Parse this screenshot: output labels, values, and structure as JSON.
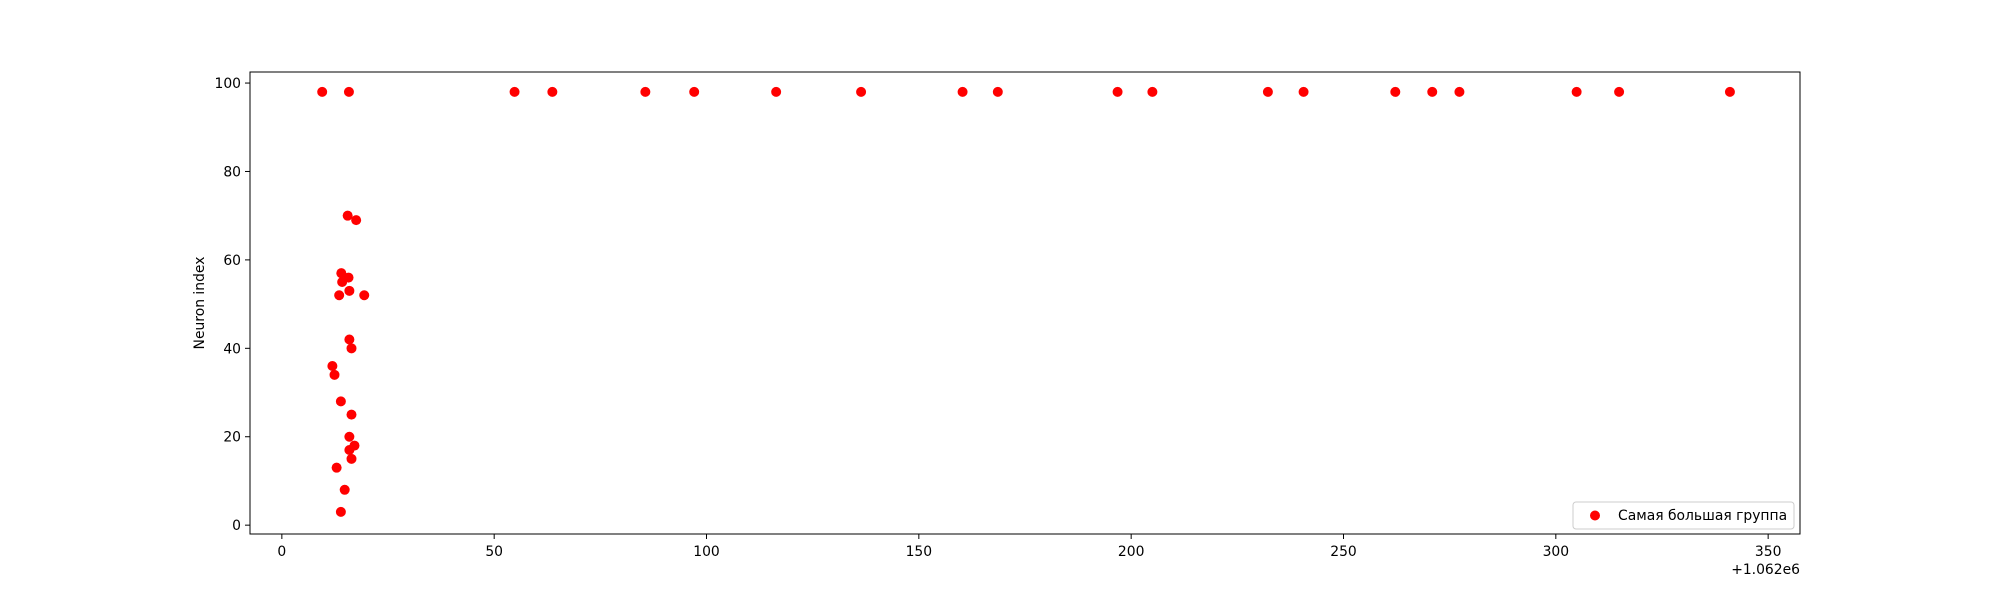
{
  "chart_data": {
    "type": "scatter",
    "title": "",
    "xlabel": "",
    "ylabel": "Neuron index",
    "x_offset_label": "+1.062e6",
    "x_offset": 1062000,
    "xlim": [
      -7.5,
      357.5
    ],
    "ylim": [
      -2,
      102.5
    ],
    "xticks": [
      0,
      50,
      100,
      150,
      200,
      250,
      300,
      350
    ],
    "xtick_labels": [
      "0",
      "50",
      "100",
      "150",
      "200",
      "250",
      "300",
      "350"
    ],
    "yticks": [
      0,
      20,
      40,
      60,
      80,
      100
    ],
    "ytick_labels": [
      "0",
      "20",
      "40",
      "60",
      "80",
      "100"
    ],
    "grid": false,
    "legend_position": "lower-right",
    "marker_color": "#ff0000",
    "series": [
      {
        "name": "Самая большая группа",
        "color": "#ff0000",
        "points": [
          [
            9.5,
            98
          ],
          [
            15.8,
            98
          ],
          [
            54.8,
            98
          ],
          [
            63.7,
            98
          ],
          [
            85.6,
            98
          ],
          [
            97.1,
            98
          ],
          [
            116.4,
            98
          ],
          [
            136.4,
            98
          ],
          [
            160.3,
            98
          ],
          [
            168.6,
            98
          ],
          [
            196.8,
            98
          ],
          [
            205.0,
            98
          ],
          [
            232.2,
            98
          ],
          [
            240.6,
            98
          ],
          [
            262.2,
            98
          ],
          [
            270.9,
            98
          ],
          [
            277.3,
            98
          ],
          [
            304.9,
            98
          ],
          [
            314.9,
            98
          ],
          [
            341.0,
            98
          ],
          [
            15.5,
            70
          ],
          [
            17.5,
            69
          ],
          [
            14.0,
            57
          ],
          [
            14.2,
            55
          ],
          [
            15.7,
            56
          ],
          [
            15.9,
            53
          ],
          [
            13.5,
            52
          ],
          [
            19.4,
            52
          ],
          [
            15.9,
            42
          ],
          [
            16.4,
            40
          ],
          [
            11.9,
            36
          ],
          [
            12.4,
            34
          ],
          [
            13.9,
            28
          ],
          [
            16.4,
            25
          ],
          [
            15.9,
            20
          ],
          [
            17.1,
            18
          ],
          [
            15.9,
            17
          ],
          [
            16.4,
            15
          ],
          [
            12.9,
            13
          ],
          [
            14.8,
            8
          ],
          [
            13.9,
            3
          ]
        ]
      }
    ]
  }
}
